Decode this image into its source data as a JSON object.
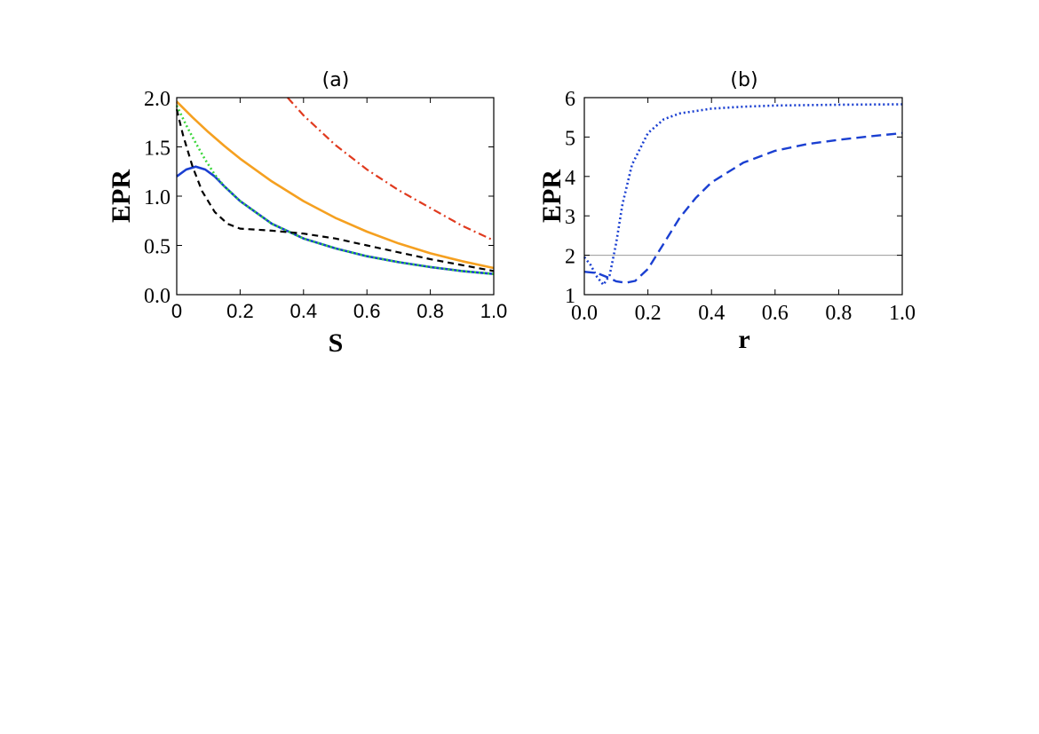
{
  "chart_data": [
    {
      "type": "line",
      "title": "(a)",
      "xlabel": "S",
      "ylabel": "EPR",
      "xlim": [
        0,
        1
      ],
      "ylim": [
        0,
        2
      ],
      "xticks": [
        "0",
        "0.2",
        "0.4",
        "0.6",
        "0.8",
        "1.0"
      ],
      "yticks": [
        "0.0",
        "0.5",
        "1.0",
        "1.5",
        "2.0"
      ],
      "grid": false,
      "series": [
        {
          "color": "#f5a020",
          "style": "solid",
          "x": [
            0,
            0.05,
            0.1,
            0.15,
            0.2,
            0.3,
            0.4,
            0.5,
            0.6,
            0.7,
            0.8,
            0.9,
            1.0
          ],
          "y": [
            1.96,
            1.8,
            1.65,
            1.51,
            1.38,
            1.15,
            0.95,
            0.78,
            0.64,
            0.52,
            0.42,
            0.34,
            0.27
          ]
        },
        {
          "color": "#e03a1e",
          "style": "dashdot",
          "x": [
            0.35,
            0.4,
            0.5,
            0.6,
            0.7,
            0.8,
            0.9,
            1.0
          ],
          "y": [
            2.0,
            1.82,
            1.52,
            1.27,
            1.06,
            0.88,
            0.7,
            0.55
          ]
        },
        {
          "color": "#1a3fd1",
          "style": "solid",
          "x": [
            0,
            0.03,
            0.06,
            0.09,
            0.12,
            0.15,
            0.2,
            0.3,
            0.4,
            0.5,
            0.6,
            0.7,
            0.8,
            0.9,
            1.0
          ],
          "y": [
            1.2,
            1.27,
            1.3,
            1.27,
            1.2,
            1.1,
            0.95,
            0.72,
            0.57,
            0.47,
            0.39,
            0.33,
            0.28,
            0.24,
            0.21
          ]
        },
        {
          "color": "#3ad63a",
          "style": "dotted",
          "x": [
            0,
            0.03,
            0.06,
            0.09,
            0.12,
            0.15,
            0.2,
            0.3,
            0.4,
            0.5,
            0.6,
            0.7,
            0.8,
            0.9,
            1.0
          ],
          "y": [
            1.92,
            1.72,
            1.54,
            1.37,
            1.22,
            1.1,
            0.95,
            0.72,
            0.57,
            0.47,
            0.39,
            0.33,
            0.28,
            0.24,
            0.21
          ]
        },
        {
          "color": "#000000",
          "style": "dashed",
          "x": [
            0,
            0.02,
            0.05,
            0.08,
            0.12,
            0.16,
            0.2,
            0.25,
            0.3,
            0.4,
            0.5,
            0.6,
            0.7,
            0.8,
            0.9,
            1.0
          ],
          "y": [
            1.88,
            1.62,
            1.3,
            1.05,
            0.84,
            0.72,
            0.67,
            0.66,
            0.65,
            0.62,
            0.57,
            0.5,
            0.43,
            0.36,
            0.3,
            0.24
          ]
        }
      ]
    },
    {
      "type": "line",
      "title": "(b)",
      "xlabel": "r",
      "ylabel": "EPR",
      "xlim": [
        0,
        1
      ],
      "ylim": [
        1,
        6
      ],
      "xticks": [
        "0.0",
        "0.2",
        "0.4",
        "0.6",
        "0.8",
        "1.0"
      ],
      "yticks": [
        "1",
        "2",
        "3",
        "4",
        "5",
        "6"
      ],
      "grid": false,
      "hline": 2,
      "series": [
        {
          "color": "#1a3fd1",
          "style": "dotted",
          "x": [
            0,
            0.02,
            0.04,
            0.06,
            0.08,
            0.1,
            0.12,
            0.15,
            0.2,
            0.25,
            0.3,
            0.4,
            0.5,
            0.6,
            0.8,
            1.0
          ],
          "y": [
            1.95,
            1.75,
            1.45,
            1.25,
            1.5,
            2.3,
            3.3,
            4.3,
            5.1,
            5.45,
            5.6,
            5.72,
            5.77,
            5.8,
            5.82,
            5.83
          ]
        },
        {
          "color": "#1a3fd1",
          "style": "longdash",
          "x": [
            0,
            0.04,
            0.08,
            0.1,
            0.13,
            0.16,
            0.2,
            0.25,
            0.3,
            0.35,
            0.4,
            0.5,
            0.6,
            0.7,
            0.8,
            0.9,
            1.0
          ],
          "y": [
            1.58,
            1.55,
            1.42,
            1.34,
            1.3,
            1.35,
            1.65,
            2.3,
            2.95,
            3.45,
            3.85,
            4.35,
            4.65,
            4.82,
            4.93,
            5.02,
            5.1
          ]
        }
      ]
    }
  ]
}
